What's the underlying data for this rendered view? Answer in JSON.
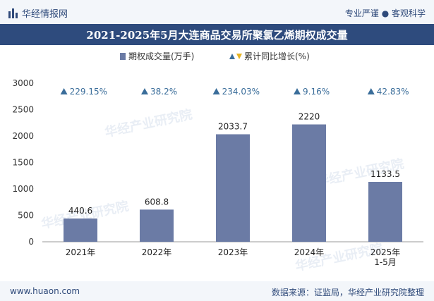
{
  "header": {
    "brand": "华经情报网",
    "tagline": "专业严谨 ● 客观科学",
    "title": "2021-2025年5月大连商品交易所聚氯乙烯期权成交量"
  },
  "footer": {
    "website": "www.huaon.com",
    "source": "数据来源：证监局，华经产业研究院整理"
  },
  "watermark": "华经产业研究院",
  "colors": {
    "bar": "#6b7ba5",
    "triangle": "#3a6d9a",
    "title_bg": "#2e4b7d"
  },
  "chart_data": {
    "type": "bar",
    "title": "2021-2025年5月大连商品交易所聚氯乙烯期权成交量",
    "categories": [
      "2021年",
      "2022年",
      "2023年",
      "2024年",
      "2025年\n1-5月"
    ],
    "series": [
      {
        "name": "期权成交量(万手)",
        "values": [
          440.6,
          608.8,
          2033.7,
          2220,
          1133.5
        ]
      }
    ],
    "value_labels": [
      "440.6",
      "608.8",
      "2033.7",
      "2220",
      "1133.5"
    ],
    "growth": {
      "name": "累计同比增长(%)",
      "labels": [
        "229.15%",
        "38.2%",
        "234.03%",
        "9.16%",
        "42.83%"
      ]
    },
    "yticks": [
      0,
      500,
      1000,
      1500,
      2000,
      2500,
      3000
    ],
    "ylim": [
      0,
      3000
    ],
    "xlabel": "",
    "ylabel": "",
    "legend": [
      "期权成交量(万手)",
      "累计同比增长(%)"
    ],
    "legend_position": "top-center"
  }
}
